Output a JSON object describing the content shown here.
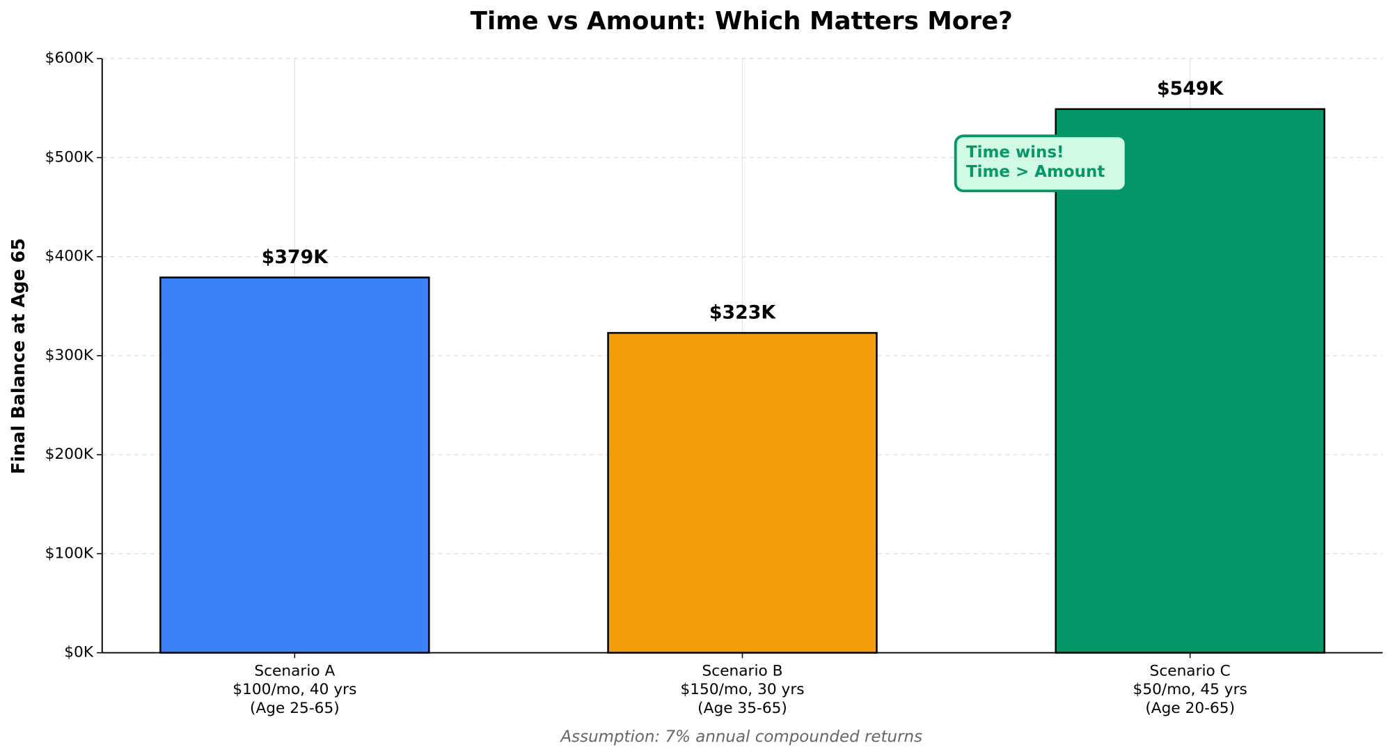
{
  "chart_data": {
    "type": "bar",
    "title": "Time vs Amount: Which Matters More?",
    "ylabel": "Final Balance at Age 65",
    "categories": [
      [
        "Scenario A",
        "$100/mo, 40 yrs",
        "(Age 25-65)"
      ],
      [
        "Scenario B",
        "$150/mo, 30 yrs",
        "(Age 35-65)"
      ],
      [
        "Scenario C",
        "$50/mo, 45 yrs",
        "(Age 20-65)"
      ]
    ],
    "values": [
      379000,
      323000,
      549000
    ],
    "value_labels": [
      "$379K",
      "$323K",
      "$549K"
    ],
    "colors": [
      "#3b82f6",
      "#f59e0b",
      "#059669"
    ],
    "ylim": [
      0,
      600000
    ],
    "yticks": [
      {
        "value": 0,
        "label": "$0K"
      },
      {
        "value": 100000,
        "label": "$100K"
      },
      {
        "value": 200000,
        "label": "$200K"
      },
      {
        "value": 300000,
        "label": "$300K"
      },
      {
        "value": 400000,
        "label": "$400K"
      },
      {
        "value": 500000,
        "label": "$500K"
      },
      {
        "value": 600000,
        "label": "$600K"
      }
    ],
    "grid": true,
    "annotation": [
      "Time wins!",
      "Time > Amount"
    ],
    "footnote": "Assumption: 7% annual compounded returns"
  }
}
